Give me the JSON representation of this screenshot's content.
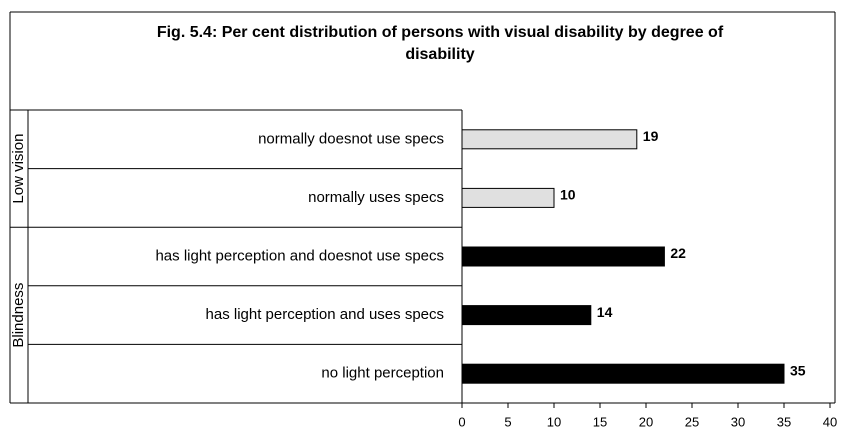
{
  "chart_data": {
    "type": "bar",
    "orientation": "horizontal",
    "title": "Fig. 5.4: Per cent distribution of persons with visual disability by degree of disability",
    "series": [
      {
        "name": "Low vision",
        "color": "#e0e0e0",
        "categories": [
          "normally doesnot use specs",
          "normally uses specs"
        ],
        "values": [
          19,
          10
        ]
      },
      {
        "name": "Blindness",
        "color": "#000000",
        "categories": [
          "has light perception and doesnot use specs",
          "has light perception and uses specs",
          "no light perception"
        ],
        "values": [
          22,
          14,
          35
        ]
      }
    ],
    "xlim": [
      0,
      40
    ],
    "xticks": [
      0,
      5,
      10,
      15,
      20,
      25,
      30,
      35,
      40
    ]
  }
}
